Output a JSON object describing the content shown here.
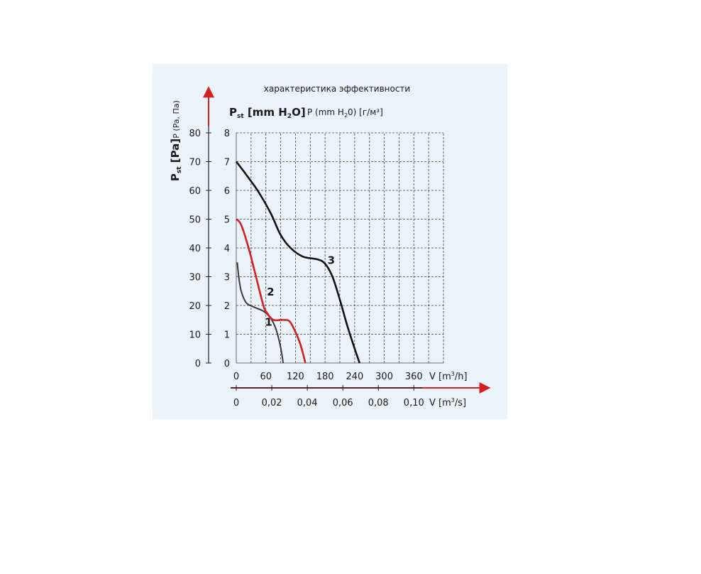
{
  "chart_data": {
    "type": "line",
    "title": "характеристика эффективности",
    "ylabel_left_unit": "P (Pa, Па)",
    "ylabel_left_main": "Pst [Pa]",
    "ylabel_right_main": "Pst [mm H2O]",
    "ylabel_right_alt": "P (mm H2O) [г/м³]",
    "xlabel_top": "V [m³/h]",
    "xlabel_bottom": "V [m³/s]",
    "x_ticks_m3h": [
      "0",
      "60",
      "120",
      "180",
      "240",
      "300",
      "360"
    ],
    "x_ticks_m3s": [
      "0",
      "0,02",
      "0,04",
      "0,06",
      "0,08",
      "0,10"
    ],
    "y_ticks_pa": [
      "0",
      "10",
      "20",
      "30",
      "40",
      "50",
      "60",
      "70",
      "80"
    ],
    "y_ticks_mmh2o": [
      "0",
      "1",
      "2",
      "3",
      "4",
      "5",
      "6",
      "7",
      "8"
    ],
    "xlim_m3h": [
      0,
      420
    ],
    "ylim_mmh2o": [
      0,
      8
    ],
    "grid": true,
    "series": [
      {
        "name": "1",
        "color": "#3a3a3a",
        "points": [
          [
            2,
            3.5
          ],
          [
            5,
            3.0
          ],
          [
            10,
            2.5
          ],
          [
            20,
            2.1
          ],
          [
            35,
            1.95
          ],
          [
            55,
            1.8
          ],
          [
            70,
            1.55
          ],
          [
            80,
            1.2
          ],
          [
            88,
            0.7
          ],
          [
            93,
            0.25
          ],
          [
            95,
            0
          ]
        ]
      },
      {
        "name": "2",
        "color": "#d42020",
        "points": [
          [
            0,
            5.0
          ],
          [
            10,
            4.8
          ],
          [
            25,
            4.0
          ],
          [
            40,
            3.0
          ],
          [
            55,
            2.0
          ],
          [
            62,
            1.75
          ],
          [
            75,
            1.5
          ],
          [
            95,
            1.5
          ],
          [
            108,
            1.45
          ],
          [
            118,
            1.15
          ],
          [
            128,
            0.75
          ],
          [
            135,
            0.35
          ],
          [
            140,
            0
          ]
        ]
      },
      {
        "name": "3",
        "color": "#111111",
        "points": [
          [
            0,
            7.0
          ],
          [
            20,
            6.55
          ],
          [
            45,
            5.95
          ],
          [
            70,
            5.2
          ],
          [
            90,
            4.45
          ],
          [
            110,
            4.0
          ],
          [
            135,
            3.7
          ],
          [
            165,
            3.6
          ],
          [
            180,
            3.45
          ],
          [
            195,
            3.0
          ],
          [
            210,
            2.2
          ],
          [
            225,
            1.3
          ],
          [
            240,
            0.5
          ],
          [
            250,
            0
          ]
        ]
      }
    ]
  }
}
